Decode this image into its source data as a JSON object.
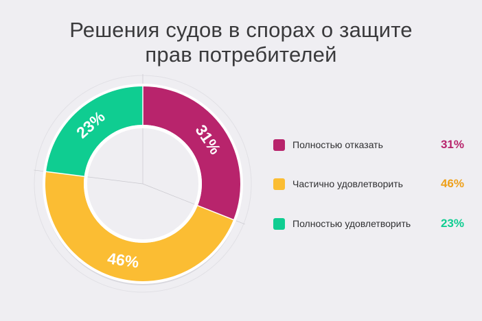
{
  "chart_data": {
    "type": "pie",
    "title_lines": [
      "Решения судов в спорах о защите",
      "прав потребителей"
    ],
    "unit": "%",
    "categories": [
      "Полностью отказать",
      "Частично удовлетворить",
      "Полностью удовлетворить"
    ],
    "values": [
      31,
      46,
      23
    ],
    "value_labels": [
      "31%",
      "46%",
      "23%"
    ],
    "colors": [
      "#b8246c",
      "#fbbd33",
      "#0fcd91"
    ],
    "legend_value_colors": [
      "#b8246c",
      "#eea01a",
      "#0fcd91"
    ],
    "legend_position": "right",
    "donut": true
  }
}
